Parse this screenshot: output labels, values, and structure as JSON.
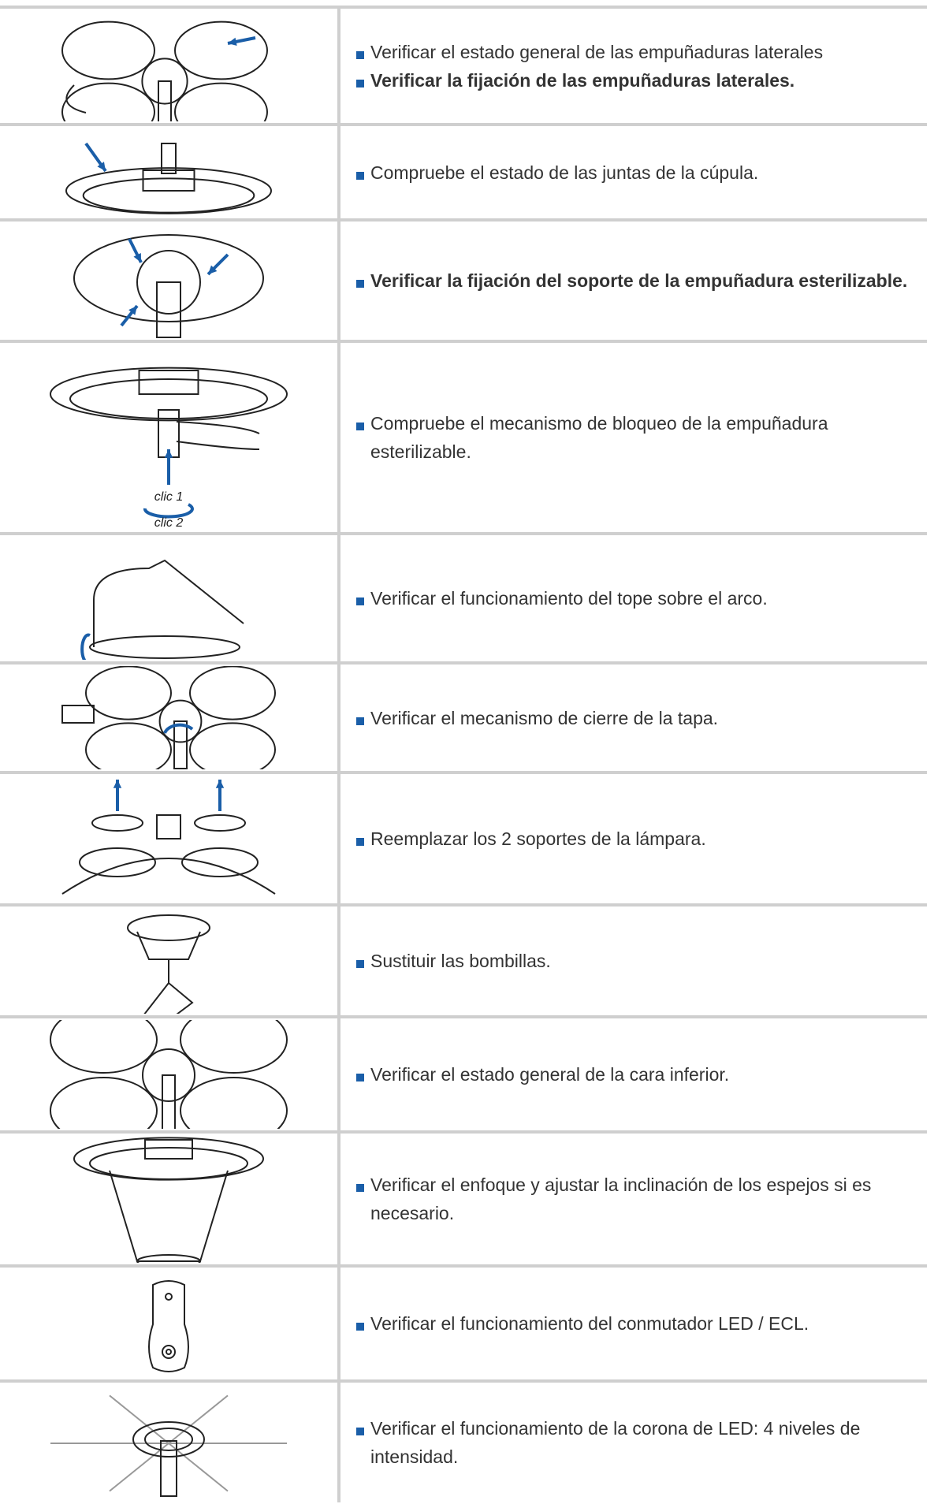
{
  "rows": [
    {
      "items": [
        {
          "text": "Verificar el estado general de las empuñaduras laterales",
          "bold": false
        },
        {
          "text": "Verificar la fijación de las empuñaduras laterales.",
          "bold": true
        }
      ]
    },
    {
      "items": [
        {
          "text": "Compruebe el estado de las juntas de la cúpula.",
          "bold": false
        }
      ]
    },
    {
      "items": [
        {
          "text": "Verificar la fijación del soporte de la empuñadura esterilizable.",
          "bold": true
        }
      ]
    },
    {
      "items": [
        {
          "text": "Compruebe el mecanismo de bloqueo de la empuñadura esterilizable.",
          "bold": false
        }
      ],
      "image_labels": [
        "clic 1",
        "clic 2"
      ]
    },
    {
      "items": [
        {
          "text": "Verificar el funcionamiento del tope sobre el arco.",
          "bold": false
        }
      ]
    },
    {
      "items": [
        {
          "text": "Verificar el mecanismo de cierre de la tapa.",
          "bold": false
        }
      ]
    },
    {
      "items": [
        {
          "text": "Reemplazar los 2 soportes de la lámpara.",
          "bold": false
        }
      ]
    },
    {
      "items": [
        {
          "text": "Sustituir las bombillas.",
          "bold": false
        }
      ]
    },
    {
      "items": [
        {
          "text": "Verificar el estado general de la cara inferior.",
          "bold": false
        }
      ]
    },
    {
      "items": [
        {
          "text": "Verificar el enfoque y ajustar la inclinación de los espejos si es necesario.",
          "bold": false
        }
      ]
    },
    {
      "items": [
        {
          "text": "Verificar el funcionamiento del conmutador LED / ECL.",
          "bold": false
        }
      ]
    },
    {
      "items": [
        {
          "text": "Verificar el funcionamiento de la corona de LED: 4 niveles de intensidad.",
          "bold": false
        }
      ]
    }
  ]
}
